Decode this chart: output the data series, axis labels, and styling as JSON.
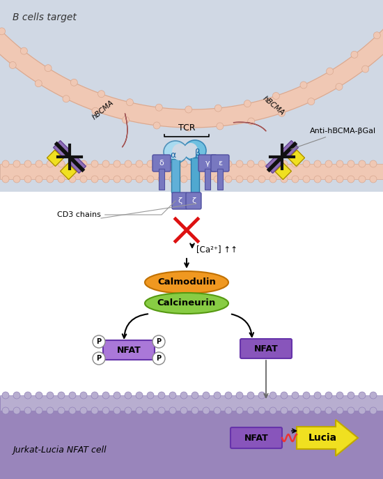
{
  "title": "B cells target",
  "subtitle": "Jurkat-Lucia NFAT cell",
  "anti_label": "Anti-hBCMA-βGal",
  "tcr_label": "TCR",
  "hbcma_label": "hBCMA",
  "cd3_label": "CD3 chains",
  "ca_label": "[Ca²⁺] ↑↑",
  "calmodulin_label": "Calmodulin",
  "calcineurin_label": "Calcineurin",
  "nfat_label": "NFAT",
  "lucia_label": "Lucia",
  "bg_gray_blue": "#d0d8e4",
  "bg_white": "#ffffff",
  "bg_purple": "#9985bb",
  "membrane_color": "#f0c8b4",
  "membrane_edge": "#d8a890",
  "membrane_knob": "#f0c8b4",
  "tcr_alpha_color": "#90d0f0",
  "tcr_beta_color": "#60b8e8",
  "cd3_color": "#7878c0",
  "cd3_edge": "#5050a0",
  "hbcma_color": "#c88080",
  "hbcma_edge": "#a05858",
  "antibody_purple": "#9070b8",
  "antibody_yellow": "#f0e020",
  "antibody_black": "#111111",
  "antibody_cross_red": "#cc2020",
  "calmodulin_color": "#f09820",
  "calmodulin_edge": "#c07000",
  "calcineurin_color": "#88cc44",
  "calcineurin_edge": "#559911",
  "nfat_phospho_color": "#aa78d8",
  "nfat_dephospho_color": "#8855bb",
  "nfat_edge": "#6633aa",
  "lucia_yellow": "#f0e020",
  "lucia_edge": "#c0a800",
  "red_x": "#dd1111",
  "arrow_dark": "#222222",
  "arrow_gray": "#888888",
  "p_fill": "#ffffff",
  "p_edge": "#888888",
  "jurkat_membrane": "#b8aed0",
  "fig_w": 5.5,
  "fig_h": 6.87
}
